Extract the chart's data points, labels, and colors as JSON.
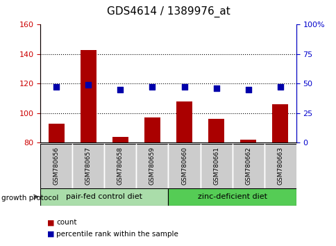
{
  "title": "GDS4614 / 1389976_at",
  "samples": [
    "GSM780656",
    "GSM780657",
    "GSM780658",
    "GSM780659",
    "GSM780660",
    "GSM780661",
    "GSM780662",
    "GSM780663"
  ],
  "counts": [
    93,
    143,
    84,
    97,
    108,
    96,
    82,
    106
  ],
  "percentiles": [
    47,
    49,
    45,
    47,
    47,
    46,
    45,
    47
  ],
  "ylim_left": [
    80,
    160
  ],
  "ylim_right": [
    0,
    100
  ],
  "yticks_left": [
    80,
    100,
    120,
    140,
    160
  ],
  "yticks_right": [
    0,
    25,
    50,
    75,
    100
  ],
  "ytick_labels_right": [
    "0",
    "25",
    "50",
    "75",
    "100%"
  ],
  "groups": [
    {
      "label": "pair-fed control diet",
      "start": 0,
      "end": 4,
      "color": "#aaddaa"
    },
    {
      "label": "zinc-deficient diet",
      "start": 4,
      "end": 8,
      "color": "#55cc55"
    }
  ],
  "group_label": "growth protocol",
  "bar_color": "#aa0000",
  "dot_color": "#0000aa",
  "bar_width": 0.5,
  "tick_label_color_left": "#cc0000",
  "tick_label_color_right": "#0000cc",
  "legend_count_label": "count",
  "legend_pct_label": "percentile rank within the sample",
  "sample_box_color": "#cccccc",
  "dotted_grid_levels": [
    100,
    120,
    140
  ],
  "dot_size": 40,
  "dot_marker": "s",
  "figsize": [
    4.85,
    3.54
  ],
  "dpi": 100
}
